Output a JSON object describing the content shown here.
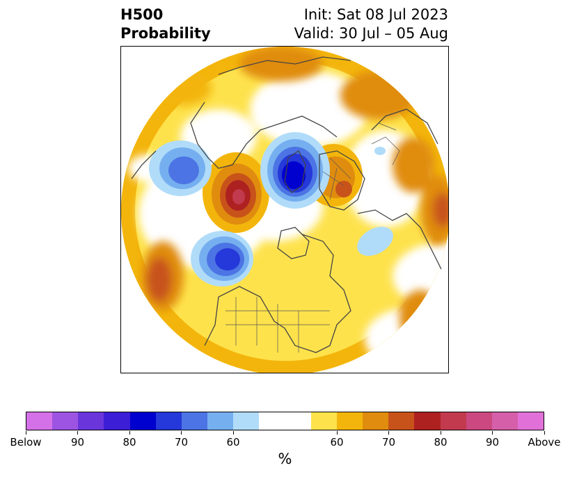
{
  "header": {
    "title_line1": "H500",
    "title_line2": "Probability",
    "init_label": "Init: Sat 08 Jul 2023",
    "valid_label": "Valid: 30 Jul – 05 Aug"
  },
  "map": {
    "projection": "north-polar-stereographic",
    "features": [
      "coastlines",
      "country-borders",
      "state-borders"
    ],
    "background_color": "#ffffff",
    "coast_color": "#444444"
  },
  "colorbar": {
    "segment_colors": [
      "#d571e8",
      "#9d54e2",
      "#6a36dc",
      "#3c1ed6",
      "#0000cf",
      "#2538d9",
      "#4c74e4",
      "#76aff0",
      "#b0dcf9",
      "#ffffff",
      "#ffffff",
      "#fee24c",
      "#f3b50c",
      "#e08c0f",
      "#c8531a",
      "#ae2121",
      "#c23a4e",
      "#cb4880",
      "#d65faa",
      "#e171d8"
    ],
    "tick_labels": [
      "Below",
      "90",
      "80",
      "70",
      "60",
      "60",
      "70",
      "80",
      "90",
      "Above"
    ],
    "unit": "%"
  }
}
